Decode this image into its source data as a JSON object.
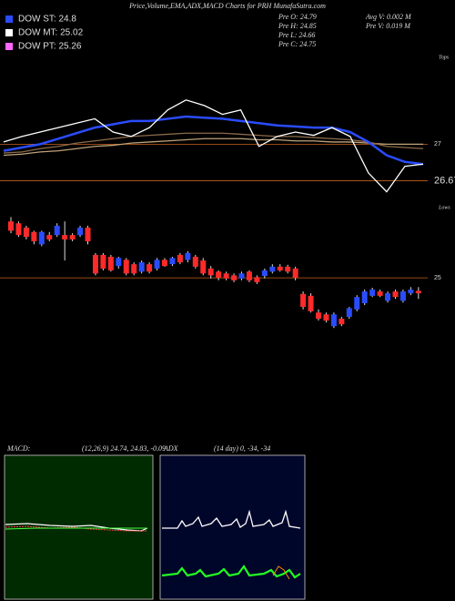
{
  "title": "Price,Volume,EMA,ADX,MACD Charts for PRH MunafaSutra.com",
  "legend": [
    {
      "label": "DOW ST: 24.8",
      "color": "#2a4cff"
    },
    {
      "label": "DOW MT: 25.02",
      "color": "#ffffff"
    },
    {
      "label": "DOW PT: 25.26",
      "color": "#ff66ff"
    }
  ],
  "stats": [
    [
      "Pre O: 24.79",
      "Pre H: 24.85",
      "Pre L: 24.66",
      "Pre C: 24.75"
    ],
    [
      "Avg V: 0.002 M",
      "Pre V: 0.019 M"
    ]
  ],
  "chart_data": [
    {
      "type": "line",
      "ylim": [
        26.41,
        27.81
      ],
      "yticks": [
        27,
        26.67
      ],
      "grid": true,
      "grid_color": "#c8601e",
      "corner_label": "Tops",
      "series": [
        {
          "color": "#bfa27a",
          "values": [
            26.9,
            26.91,
            26.93,
            26.94,
            26.96,
            26.98,
            26.99,
            27.01,
            27.02,
            27.03,
            27.04,
            27.05,
            27.05,
            27.05,
            27.04,
            27.04,
            27.03,
            27.03,
            27.02,
            27.02,
            27.01,
            27.0,
            27.0,
            27.0
          ]
        },
        {
          "color": "#8a6a4a",
          "values": [
            26.92,
            26.93,
            26.96,
            26.98,
            27.01,
            27.03,
            27.05,
            27.07,
            27.08,
            27.09,
            27.1,
            27.1,
            27.1,
            27.09,
            27.08,
            27.07,
            27.07,
            27.06,
            27.05,
            27.04,
            27.02,
            26.98,
            26.97,
            26.96
          ]
        },
        {
          "color": "#2a4cff",
          "values": [
            26.94,
            26.97,
            27.0,
            27.05,
            27.1,
            27.15,
            27.18,
            27.21,
            27.21,
            27.23,
            27.25,
            27.24,
            27.23,
            27.21,
            27.19,
            27.17,
            27.16,
            27.15,
            27.15,
            27.11,
            27.02,
            26.9,
            26.84,
            26.82
          ]
        },
        {
          "color": "#ffffff",
          "values": [
            27.02,
            27.07,
            27.11,
            27.15,
            27.19,
            27.23,
            27.11,
            27.07,
            27.15,
            27.31,
            27.4,
            27.35,
            27.27,
            27.31,
            26.98,
            27.07,
            27.11,
            27.08,
            27.15,
            27.07,
            26.74,
            26.57,
            26.8,
            26.82
          ]
        }
      ]
    },
    {
      "type": "candlestick",
      "ylim": [
        22.43,
        26.03
      ],
      "yticks": [
        25
      ],
      "grid": true,
      "grid_color": "#c8601e",
      "corner_label": "Lows",
      "up_color": "#2a4cff",
      "down_color": "#ff2a2a",
      "open": [
        25.91,
        25.88,
        25.81,
        25.74,
        25.54,
        25.69,
        25.69,
        25.69,
        25.69,
        25.69,
        25.81,
        25.37,
        25.37,
        25.34,
        25.19,
        25.29,
        25.22,
        25.1,
        25.22,
        25.15,
        25.29,
        25.22,
        25.37,
        25.29,
        25.34,
        25.28,
        25.15,
        25.1,
        25.07,
        25.04,
        24.99,
        25.1,
        25.01,
        25.03,
        25.1,
        25.18,
        25.18,
        25.15,
        24.74,
        24.71,
        24.44,
        24.41,
        24.22,
        24.34,
        24.37,
        24.49,
        24.59,
        24.71,
        24.78,
        24.63,
        24.78,
        24.63,
        24.75,
        24.79
      ],
      "high": [
        25.98,
        25.91,
        25.84,
        25.76,
        25.76,
        25.74,
        25.88,
        25.91,
        25.72,
        25.84,
        25.84,
        25.4,
        25.4,
        25.37,
        25.34,
        25.32,
        25.25,
        25.28,
        25.25,
        25.32,
        25.32,
        25.34,
        25.4,
        25.43,
        25.37,
        25.32,
        25.19,
        25.12,
        25.1,
        25.07,
        25.1,
        25.12,
        25.04,
        25.15,
        25.22,
        25.22,
        25.21,
        25.18,
        24.78,
        24.75,
        24.49,
        24.44,
        24.44,
        24.37,
        24.53,
        24.72,
        24.81,
        24.84,
        24.81,
        24.78,
        24.81,
        24.81,
        24.85,
        24.85
      ],
      "low": [
        25.72,
        25.66,
        25.62,
        25.54,
        25.51,
        25.59,
        25.66,
        25.28,
        25.59,
        25.66,
        25.54,
        25.04,
        25.12,
        25.1,
        25.15,
        25.04,
        25.04,
        25.07,
        25.07,
        25.12,
        25.18,
        25.19,
        25.22,
        25.25,
        25.15,
        25.04,
        24.99,
        24.96,
        24.96,
        24.93,
        24.96,
        24.93,
        24.9,
        24.99,
        25.07,
        25.1,
        25.07,
        24.96,
        24.49,
        24.44,
        24.31,
        24.28,
        24.19,
        24.22,
        24.34,
        24.46,
        24.56,
        24.69,
        24.69,
        24.6,
        24.66,
        24.6,
        24.72,
        24.66
      ],
      "close": [
        25.76,
        25.69,
        25.66,
        25.59,
        25.74,
        25.62,
        25.84,
        25.62,
        25.62,
        25.81,
        25.59,
        25.07,
        25.15,
        25.12,
        25.32,
        25.07,
        25.07,
        25.25,
        25.1,
        25.29,
        25.19,
        25.32,
        25.25,
        25.4,
        25.18,
        25.07,
        25.04,
        25.0,
        24.99,
        24.96,
        25.07,
        24.96,
        24.93,
        25.12,
        25.18,
        25.12,
        25.1,
        25.0,
        24.53,
        24.46,
        24.34,
        24.31,
        24.41,
        24.25,
        24.51,
        24.69,
        24.78,
        24.81,
        24.71,
        24.75,
        24.69,
        24.78,
        24.81,
        24.75
      ]
    }
  ],
  "indicators": [
    {
      "title": "MACD:",
      "params": "(12,26,9) 24.74, 24.83, -0.09"
    },
    {
      "title": "ADX",
      "params": "(14 day) 0, -34, -34"
    }
  ]
}
